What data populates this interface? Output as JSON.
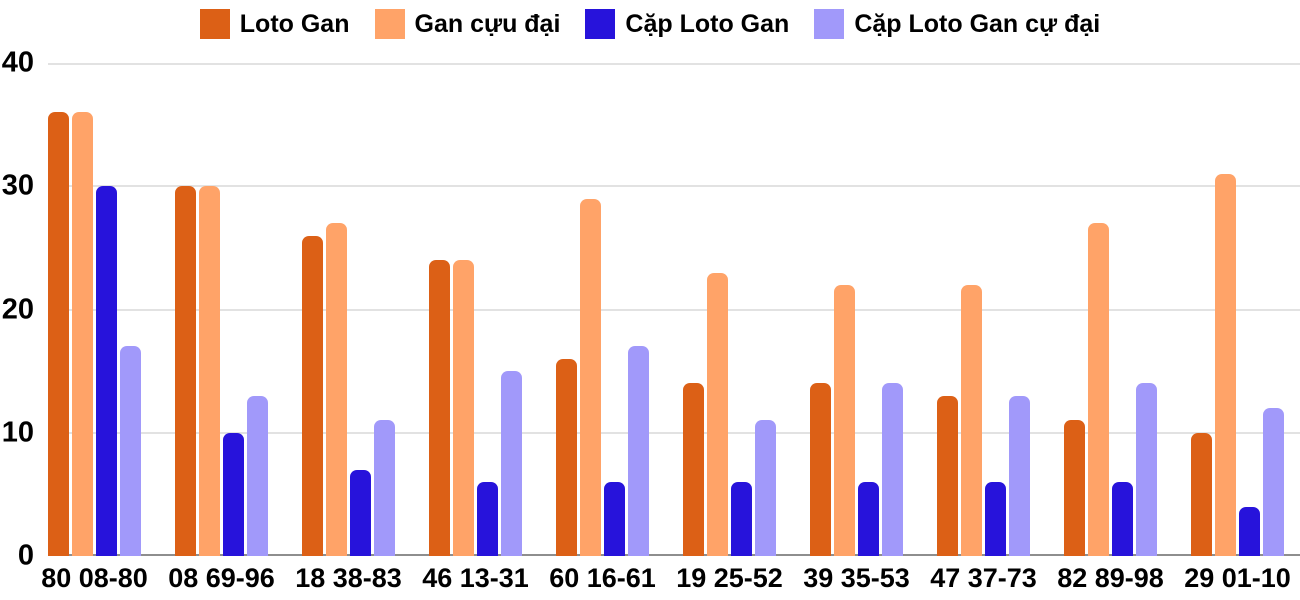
{
  "chart_data": {
    "type": "bar",
    "title": "",
    "xlabel": "",
    "ylabel": "",
    "categories": [
      "80 08-80",
      "08 69-96",
      "18 38-83",
      "46 13-31",
      "60 16-61",
      "19 25-52",
      "39 35-53",
      "47 37-73",
      "82 89-98",
      "29 01-10"
    ],
    "series": [
      {
        "id": "loto-gan",
        "name": "Loto Gan",
        "color": "#dc6016",
        "values": [
          36,
          30,
          26,
          24,
          16,
          14,
          14,
          13,
          11,
          10
        ]
      },
      {
        "id": "gan-cuu-dai",
        "name": "Gan cựu đại",
        "color": "#ffa368",
        "values": [
          36,
          30,
          27,
          24,
          29,
          23,
          22,
          22,
          27,
          31
        ]
      },
      {
        "id": "cap-loto-gan",
        "name": "Cặp Loto Gan",
        "color": "#2713db",
        "values": [
          30,
          10,
          7,
          6,
          6,
          6,
          6,
          6,
          6,
          4
        ]
      },
      {
        "id": "cap-loto-gan-cu-dai",
        "name": "Cặp Loto Gan cự đại",
        "color": "#a199fa",
        "values": [
          17,
          13,
          11,
          15,
          17,
          11,
          14,
          13,
          14,
          12
        ]
      }
    ],
    "ylim": [
      0,
      40
    ],
    "yticks": [
      0,
      10,
      20,
      30,
      40
    ],
    "grid": true,
    "grid_color": "#e2e2e2",
    "axis_line_color": "#8e8e8e",
    "legend_position": "top",
    "text_color": "#000000",
    "background_color": "#ffffff"
  }
}
